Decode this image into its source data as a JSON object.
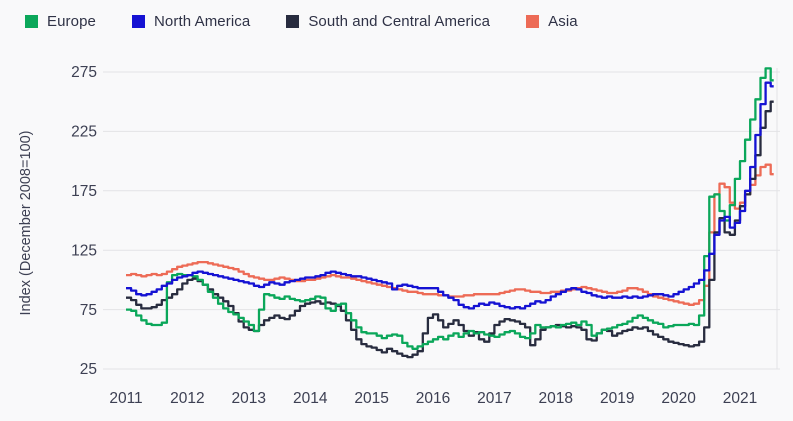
{
  "y_axis_title": "Index (December 2008=100)",
  "colors": {
    "background": "#f9f9fa",
    "gridline": "#e3e3e6",
    "axis_text": "#3d4053",
    "legend_text": "#2f3246"
  },
  "chart_data": {
    "type": "line",
    "title": "",
    "xlabel": "",
    "ylabel": "Index (December 2008=100)",
    "x_start": "2011-01",
    "x_frequency": "monthly",
    "x_end": "2021-07",
    "ylim": [
      25,
      275
    ],
    "yticks": [
      25,
      75,
      125,
      175,
      225,
      275
    ],
    "xticks": [
      "2011",
      "2012",
      "2013",
      "2014",
      "2015",
      "2016",
      "2017",
      "2018",
      "2019",
      "2020",
      "2021"
    ],
    "grid": "horizontal",
    "line_style": "step-after",
    "legend_position": "top-left",
    "series": [
      {
        "name": "Europe",
        "color": "#0ba75a",
        "values": [
          75,
          74,
          70,
          66,
          63,
          62,
          62,
          64,
          98,
          104,
          105,
          104,
          104,
          103,
          100,
          96,
          90,
          85,
          80,
          76,
          73,
          71,
          68,
          65,
          62,
          57,
          75,
          88,
          87,
          85,
          84,
          86,
          84,
          83,
          82,
          83,
          84,
          86,
          85,
          76,
          74,
          79,
          80,
          72,
          66,
          60,
          56,
          55,
          55,
          53,
          51,
          53,
          54,
          53,
          47,
          44,
          42,
          44,
          46,
          48,
          50,
          52,
          50,
          53,
          55,
          52,
          55,
          57,
          55,
          56,
          54,
          53,
          52,
          54,
          56,
          57,
          55,
          52,
          51,
          55,
          62,
          60,
          60,
          61,
          60,
          62,
          63,
          64,
          62,
          65,
          62,
          53,
          55,
          58,
          59,
          60,
          62,
          63,
          65,
          68,
          70,
          68,
          66,
          64,
          63,
          60,
          61,
          62,
          62,
          62,
          63,
          62,
          70,
          120,
          170,
          172,
          158,
          150,
          163,
          185,
          200,
          218,
          235,
          252,
          270,
          278,
          268
        ]
      },
      {
        "name": "North America",
        "color": "#1512d3",
        "values": [
          93,
          91,
          88,
          87,
          88,
          90,
          92,
          95,
          97,
          100,
          102,
          103,
          104,
          106,
          107,
          106,
          105,
          104,
          103,
          102,
          101,
          100,
          99,
          98,
          97,
          95,
          94,
          96,
          98,
          97,
          96,
          98,
          99,
          100,
          101,
          102,
          102,
          103,
          104,
          106,
          107,
          106,
          105,
          104,
          103,
          103,
          102,
          101,
          100,
          99,
          98,
          97,
          92,
          95,
          96,
          95,
          94,
          93,
          93,
          93,
          93,
          90,
          87,
          85,
          83,
          79,
          77,
          76,
          78,
          80,
          79,
          81,
          80,
          78,
          77,
          76,
          77,
          76,
          78,
          80,
          82,
          81,
          83,
          86,
          88,
          90,
          92,
          93,
          92,
          90,
          89,
          87,
          86,
          85,
          86,
          85,
          85,
          86,
          85,
          86,
          85,
          86,
          87,
          88,
          88,
          87,
          86,
          88,
          90,
          92,
          94,
          97,
          100,
          108,
          122,
          138,
          150,
          153,
          144,
          148,
          158,
          175,
          195,
          222,
          248,
          266,
          263
        ]
      },
      {
        "name": "South and Central America",
        "color": "#282c3f",
        "values": [
          85,
          83,
          79,
          76,
          76,
          77,
          79,
          83,
          85,
          88,
          92,
          97,
          100,
          101,
          99,
          96,
          92,
          88,
          85,
          82,
          78,
          72,
          65,
          60,
          58,
          57,
          62,
          66,
          68,
          70,
          68,
          67,
          70,
          74,
          78,
          80,
          81,
          82,
          80,
          81,
          80,
          78,
          74,
          66,
          58,
          50,
          46,
          44,
          43,
          41,
          39,
          42,
          40,
          38,
          36,
          35,
          37,
          40,
          55,
          68,
          71,
          66,
          60,
          63,
          66,
          62,
          57,
          53,
          56,
          50,
          48,
          55,
          62,
          65,
          67,
          66,
          65,
          63,
          60,
          45,
          50,
          58,
          60,
          61,
          62,
          61,
          60,
          61,
          60,
          58,
          50,
          49,
          55,
          58,
          57,
          53,
          55,
          57,
          58,
          60,
          59,
          60,
          57,
          54,
          52,
          50,
          48,
          47,
          46,
          45,
          44,
          45,
          48,
          60,
          100,
          140,
          152,
          140,
          138,
          150,
          162,
          172,
          185,
          205,
          228,
          242,
          250
        ]
      },
      {
        "name": "Asia",
        "color": "#ed6b56",
        "values": [
          104,
          105,
          104,
          103,
          104,
          105,
          104,
          105,
          107,
          109,
          111,
          112,
          113,
          114,
          115,
          115,
          114,
          113,
          112,
          111,
          110,
          109,
          107,
          105,
          103,
          102,
          101,
          100,
          100,
          101,
          102,
          101,
          100,
          99,
          99,
          100,
          100,
          101,
          102,
          103,
          104,
          103,
          102,
          102,
          101,
          100,
          99,
          98,
          97,
          96,
          95,
          94,
          93,
          92,
          91,
          90,
          90,
          89,
          88,
          88,
          88,
          87,
          87,
          86,
          86,
          86,
          87,
          87,
          88,
          88,
          88,
          88,
          88,
          89,
          90,
          91,
          92,
          92,
          91,
          90,
          90,
          89,
          89,
          90,
          90,
          91,
          91,
          92,
          93,
          94,
          93,
          92,
          91,
          90,
          89,
          89,
          90,
          91,
          93,
          93,
          92,
          90,
          88,
          86,
          85,
          84,
          83,
          82,
          81,
          80,
          79,
          80,
          83,
          95,
          140,
          172,
          181,
          178,
          165,
          160,
          165,
          172,
          180,
          188,
          195,
          197,
          189
        ]
      }
    ]
  }
}
